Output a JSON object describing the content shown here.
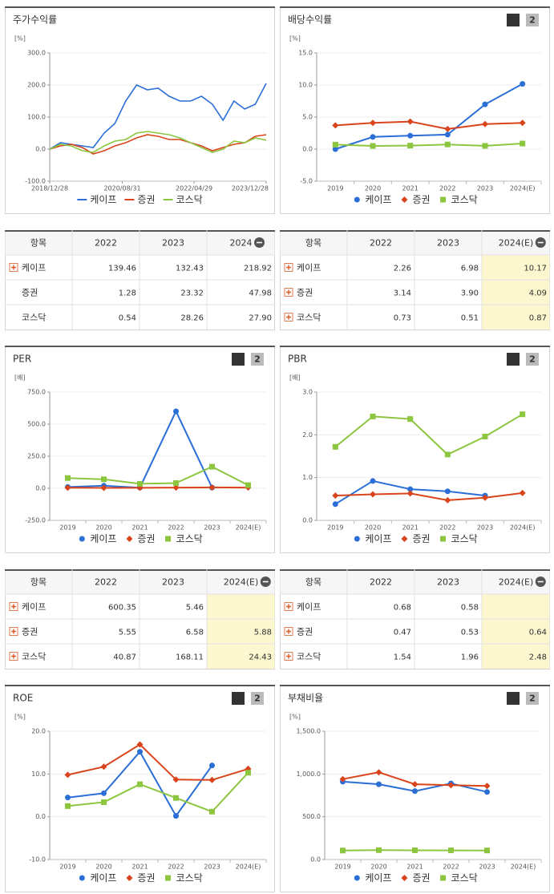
{
  "chart_data": [
    {
      "type": "line",
      "title": "주가수익률",
      "unit": "[%]",
      "x": [
        "2018/12/28",
        "2019/03/29",
        "2019/06/28",
        "2019/09/30",
        "2019/12/30",
        "2020/03/31",
        "2020/06/30",
        "2020/09/29",
        "2020/12/30",
        "2021/03/31",
        "2021/06/30",
        "2021/09/30",
        "2021/12/30",
        "2022/03/31",
        "2022/06/30",
        "2022/09/30",
        "2022/12/29",
        "2023/03/31",
        "2023/06/30",
        "2023/09/27",
        "2023/12/28"
      ],
      "xlim": [
        "2018/12/28",
        "2023/12/28"
      ],
      "xticks": [
        "2018/12/28",
        "2020/08/31",
        "2022/04/29",
        "2023/12/28"
      ],
      "ylim": [
        -100,
        300
      ],
      "yticks": [
        {
          "value": -100,
          "label": "-100.0"
        },
        {
          "value": 0,
          "label": "0.0"
        },
        {
          "value": 100,
          "label": "100.0"
        },
        {
          "value": 200,
          "label": "200.0"
        },
        {
          "value": 300,
          "label": "300.0"
        }
      ],
      "series": [
        {
          "name": "케이프",
          "color": "#2b6fd6",
          "values": [
            0,
            20,
            15,
            10,
            5,
            50,
            80,
            150,
            200,
            185,
            190,
            165,
            150,
            150,
            165,
            140,
            90,
            150,
            125,
            140,
            205
          ]
        },
        {
          "name": "증권",
          "color": "#d9441c",
          "values": [
            0,
            10,
            15,
            5,
            -15,
            -5,
            10,
            20,
            35,
            45,
            40,
            30,
            30,
            20,
            10,
            -5,
            5,
            15,
            20,
            40,
            45
          ]
        },
        {
          "name": "코스닥",
          "color": "#8cc63f",
          "values": [
            0,
            15,
            10,
            -5,
            -10,
            10,
            25,
            30,
            50,
            55,
            50,
            45,
            35,
            20,
            5,
            -10,
            0,
            25,
            20,
            35,
            28
          ]
        }
      ]
    },
    {
      "type": "category-line",
      "title": "배당수익률",
      "unit": "[%]",
      "pages": [
        "1",
        "2"
      ],
      "categories": [
        "2019",
        "2020",
        "2021",
        "2022",
        "2023",
        "2024(E)"
      ],
      "ylim": [
        -5,
        15
      ],
      "yticks": [
        {
          "value": -5,
          "label": "-5.0"
        },
        {
          "value": 0,
          "label": "0.0"
        },
        {
          "value": 5,
          "label": "5.0"
        },
        {
          "value": 10,
          "label": "10.0"
        },
        {
          "value": 15,
          "label": "15.0"
        }
      ],
      "series": [
        {
          "name": "케이프",
          "color": "#2b6fd6",
          "marker": "circle",
          "values": [
            0.0,
            1.9,
            2.1,
            2.26,
            6.98,
            10.17
          ]
        },
        {
          "name": "증권",
          "color": "#d9441c",
          "marker": "diamond",
          "values": [
            3.7,
            4.1,
            4.3,
            3.14,
            3.9,
            4.09
          ]
        },
        {
          "name": "코스닥",
          "color": "#8cc63f",
          "marker": "square",
          "values": [
            0.7,
            0.5,
            0.55,
            0.73,
            0.51,
            0.87
          ]
        }
      ]
    },
    {
      "type": "category-line",
      "title": "PER",
      "unit": "[배]",
      "pages": [
        "1",
        "2"
      ],
      "categories": [
        "2019",
        "2020",
        "2021",
        "2022",
        "2023",
        "2024(E)"
      ],
      "ylim": [
        -250,
        750
      ],
      "yticks": [
        {
          "value": -250,
          "label": "-250.0"
        },
        {
          "value": 0,
          "label": "0.0"
        },
        {
          "value": 250,
          "label": "250.0"
        },
        {
          "value": 500,
          "label": "500.0"
        },
        {
          "value": 750,
          "label": "750.0"
        }
      ],
      "series": [
        {
          "name": "케이프",
          "color": "#2b6fd6",
          "marker": "circle",
          "values": [
            10,
            20,
            5,
            600.35,
            5.46,
            null
          ]
        },
        {
          "name": "증권",
          "color": "#d9441c",
          "marker": "diamond",
          "values": [
            5,
            3,
            4,
            5.55,
            6.58,
            5.88
          ]
        },
        {
          "name": "코스닥",
          "color": "#8cc63f",
          "marker": "square",
          "values": [
            80,
            70,
            35,
            40.87,
            168.11,
            24.43
          ]
        }
      ]
    },
    {
      "type": "category-line",
      "title": "PBR",
      "unit": "[배]",
      "pages": [
        "1",
        "2"
      ],
      "categories": [
        "2019",
        "2020",
        "2021",
        "2022",
        "2023",
        "2024(E)"
      ],
      "ylim": [
        0,
        3
      ],
      "yticks": [
        {
          "value": 0,
          "label": "0.0"
        },
        {
          "value": 1,
          "label": "1.0"
        },
        {
          "value": 2,
          "label": "2.0"
        },
        {
          "value": 3,
          "label": "3.0"
        }
      ],
      "series": [
        {
          "name": "케이프",
          "color": "#2b6fd6",
          "marker": "circle",
          "values": [
            0.38,
            0.92,
            0.73,
            0.68,
            0.58,
            null
          ]
        },
        {
          "name": "증권",
          "color": "#d9441c",
          "marker": "diamond",
          "values": [
            0.58,
            0.61,
            0.63,
            0.47,
            0.53,
            0.64
          ]
        },
        {
          "name": "코스닥",
          "color": "#8cc63f",
          "marker": "square",
          "values": [
            1.72,
            2.43,
            2.37,
            1.54,
            1.96,
            2.48
          ]
        }
      ]
    },
    {
      "type": "category-line",
      "title": "ROE",
      "unit": "[%]",
      "pages": [
        "1",
        "2"
      ],
      "categories": [
        "2019",
        "2020",
        "2021",
        "2022",
        "2023",
        "2024(E)"
      ],
      "ylim": [
        -10,
        20
      ],
      "yticks": [
        {
          "value": -10,
          "label": "-10.0"
        },
        {
          "value": 0,
          "label": "0.0"
        },
        {
          "value": 10,
          "label": "10.0"
        },
        {
          "value": 20,
          "label": "20.0"
        }
      ],
      "series": [
        {
          "name": "케이프",
          "color": "#2b6fd6",
          "marker": "circle",
          "values": [
            4.5,
            5.5,
            15.2,
            0.2,
            12.0,
            null
          ]
        },
        {
          "name": "증권",
          "color": "#d9441c",
          "marker": "diamond",
          "values": [
            9.8,
            11.7,
            16.9,
            8.7,
            8.6,
            11.2
          ]
        },
        {
          "name": "코스닥",
          "color": "#8cc63f",
          "marker": "square",
          "values": [
            2.5,
            3.4,
            7.6,
            4.4,
            1.2,
            10.3
          ]
        }
      ]
    },
    {
      "type": "category-line",
      "title": "부채비율",
      "unit": "[%]",
      "pages": [
        "1",
        "2"
      ],
      "categories": [
        "2019",
        "2020",
        "2021",
        "2022",
        "2023",
        "2024(E)"
      ],
      "ylim": [
        0,
        1500
      ],
      "yticks": [
        {
          "value": 0,
          "label": "0.0"
        },
        {
          "value": 500,
          "label": "500.0"
        },
        {
          "value": 1000,
          "label": "1,000.0"
        },
        {
          "value": 1500,
          "label": "1,500.0"
        }
      ],
      "series": [
        {
          "name": "케이프",
          "color": "#2b6fd6",
          "marker": "circle",
          "values": [
            910,
            880,
            800,
            890,
            790,
            null
          ]
        },
        {
          "name": "증권",
          "color": "#d9441c",
          "marker": "diamond",
          "values": [
            940,
            1020,
            880,
            870,
            860,
            null
          ]
        },
        {
          "name": "코스닥",
          "color": "#8cc63f",
          "marker": "square",
          "values": [
            105,
            110,
            108,
            107,
            106,
            null
          ]
        }
      ]
    }
  ],
  "tables": [
    {
      "header": [
        "항목",
        "2022",
        "2023",
        "2024"
      ],
      "highlight_last": false,
      "rows": [
        {
          "name": "케이프",
          "expand": true,
          "values": [
            "139.46",
            "132.43",
            "218.92"
          ]
        },
        {
          "name": "증권",
          "expand": false,
          "values": [
            "1.28",
            "23.32",
            "47.98"
          ]
        },
        {
          "name": "코스닥",
          "expand": false,
          "values": [
            "0.54",
            "28.26",
            "27.90"
          ]
        }
      ]
    },
    {
      "header": [
        "항목",
        "2022",
        "2023",
        "2024(E)"
      ],
      "highlight_last": true,
      "rows": [
        {
          "name": "케이프",
          "expand": true,
          "values": [
            "2.26",
            "6.98",
            "10.17"
          ]
        },
        {
          "name": "증권",
          "expand": true,
          "values": [
            "3.14",
            "3.90",
            "4.09"
          ]
        },
        {
          "name": "코스닥",
          "expand": true,
          "values": [
            "0.73",
            "0.51",
            "0.87"
          ]
        }
      ]
    },
    {
      "header": [
        "항목",
        "2022",
        "2023",
        "2024(E)"
      ],
      "highlight_last": true,
      "rows": [
        {
          "name": "케이프",
          "expand": true,
          "values": [
            "600.35",
            "5.46",
            null
          ]
        },
        {
          "name": "증권",
          "expand": true,
          "values": [
            "5.55",
            "6.58",
            "5.88"
          ]
        },
        {
          "name": "코스닥",
          "expand": true,
          "values": [
            "40.87",
            "168.11",
            "24.43"
          ]
        }
      ]
    },
    {
      "header": [
        "항목",
        "2022",
        "2023",
        "2024(E)"
      ],
      "highlight_last": true,
      "rows": [
        {
          "name": "케이프",
          "expand": true,
          "values": [
            "0.68",
            "0.58",
            null
          ]
        },
        {
          "name": "증권",
          "expand": true,
          "values": [
            "0.47",
            "0.53",
            "0.64"
          ]
        },
        {
          "name": "코스닥",
          "expand": true,
          "values": [
            "1.54",
            "1.96",
            "2.48"
          ]
        }
      ]
    }
  ]
}
